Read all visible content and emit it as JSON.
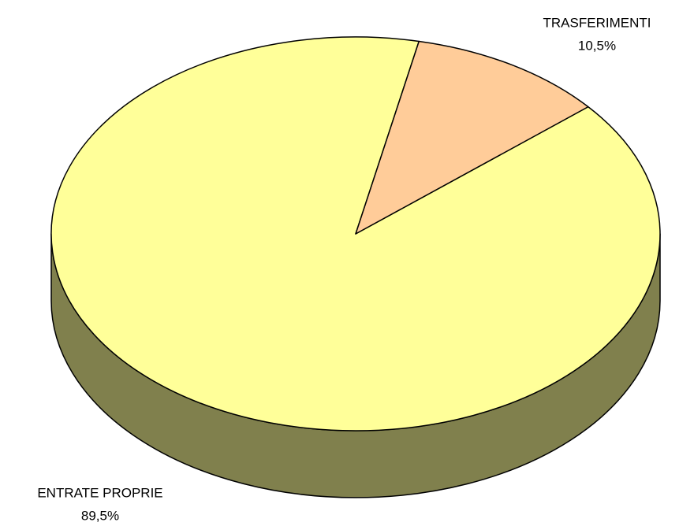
{
  "chart_data": {
    "type": "pie3d",
    "categories": [
      "ENTRATE PROPRIE",
      "TRASFERIMENTI"
    ],
    "values": [
      89.5,
      10.5
    ],
    "value_labels": [
      "89,5%",
      "10,5%"
    ],
    "colors": [
      "#ffff99",
      "#ffcc99"
    ]
  }
}
